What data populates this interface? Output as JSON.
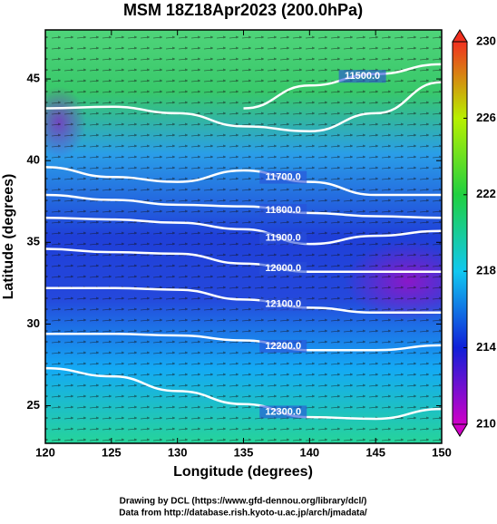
{
  "chart_data": {
    "type": "contour",
    "title": "MSM 18Z18Apr2023 (200.0hPa)",
    "x_label": "Longitude (degrees)",
    "y_label": "Latitude  (degrees)",
    "xlim": [
      120,
      150
    ],
    "ylim": [
      22.7,
      48
    ],
    "xticks": [
      120,
      125,
      130,
      135,
      140,
      145,
      150
    ],
    "yticks": [
      25,
      30,
      35,
      40,
      45
    ],
    "x": [
      120,
      125,
      130,
      135,
      140,
      145,
      150
    ],
    "contours": [
      {
        "label": "11500.0",
        "values": [
          null,
          null,
          null,
          43.2,
          44.6,
          45.3,
          45.9
        ]
      },
      {
        "label": null,
        "values": [
          43.2,
          43.3,
          42.9,
          42.1,
          41.8,
          42.9,
          44.8
        ]
      },
      {
        "label": "11700.0",
        "values": [
          39.6,
          39.0,
          38.7,
          39.4,
          38.7,
          37.9,
          37.9
        ]
      },
      {
        "label": "11800.0",
        "values": [
          37.9,
          37.6,
          37.3,
          37.2,
          36.8,
          36.6,
          36.5
        ]
      },
      {
        "label": "11900.0",
        "values": [
          36.5,
          36.4,
          36.2,
          35.8,
          34.9,
          35.4,
          35.7
        ]
      },
      {
        "label": "12000.0",
        "values": [
          34.6,
          34.4,
          34.3,
          33.7,
          33.2,
          33.2,
          33.2
        ]
      },
      {
        "label": "12100.0",
        "values": [
          32.2,
          32.2,
          32.1,
          31.5,
          31.0,
          30.7,
          30.7
        ]
      },
      {
        "label": "12200.0",
        "values": [
          29.4,
          29.4,
          29.3,
          29.0,
          28.4,
          28.4,
          28.7
        ]
      },
      {
        "label": "12300.0",
        "values": [
          27.3,
          26.8,
          25.9,
          25.1,
          24.3,
          24.2,
          24.8
        ]
      }
    ],
    "colorbar": {
      "range": [
        210,
        230
      ],
      "ticks": [
        210,
        214,
        218,
        222,
        226,
        230
      ]
    },
    "footer": [
      "Drawing by DCL (https://www.gfd-dennou.org/library/dcl/)",
      "Data from http://database.rish.kyoto-u.ac.jp/arch/jmadata/"
    ]
  }
}
